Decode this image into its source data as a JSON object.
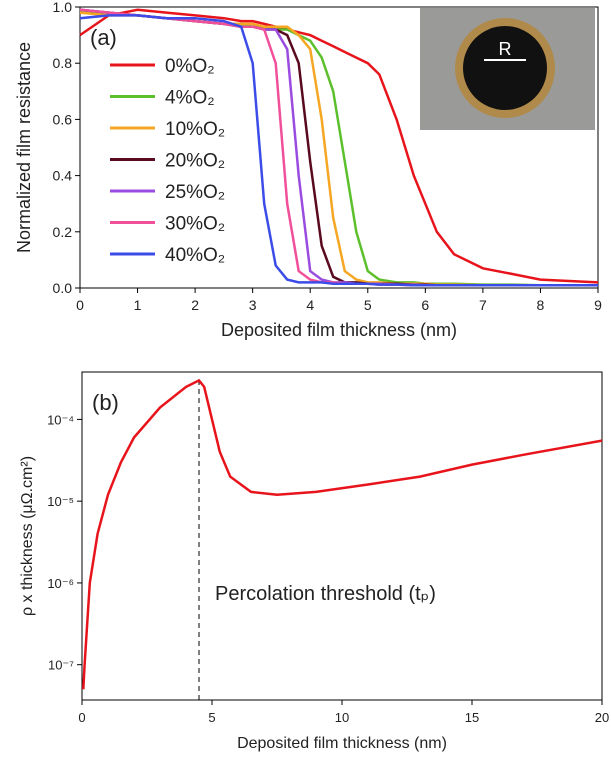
{
  "chart_data": [
    {
      "type": "line",
      "panel_label": "(a)",
      "inset_label": "R",
      "xlabel": "Deposited film thickness (nm)",
      "ylabel": "Normalized film resistance",
      "xlim": [
        0,
        9
      ],
      "ylim": [
        0,
        1
      ],
      "xticks": [
        0,
        1,
        2,
        3,
        4,
        5,
        6,
        7,
        8,
        9
      ],
      "yticks": [
        {
          "value": 0,
          "label": "0.0"
        },
        0.2,
        0.4,
        0.6,
        0.8,
        {
          "value": 1,
          "label": "1.0"
        }
      ],
      "legend_position": "upper left",
      "x": [
        0,
        0.5,
        1,
        1.5,
        2,
        2.5,
        2.8,
        3,
        3.2,
        3.4,
        3.6,
        3.8,
        4,
        4.2,
        4.4,
        4.6,
        4.8,
        5,
        5.2,
        5.5,
        5.8,
        6,
        6.2,
        6.5,
        7,
        7.5,
        8,
        9
      ],
      "series": [
        {
          "name": "0%O₂",
          "color": "#e8141c",
          "values": [
            0.9,
            0.97,
            0.99,
            0.98,
            0.97,
            0.96,
            0.95,
            0.95,
            0.94,
            0.93,
            0.92,
            0.91,
            0.9,
            0.88,
            0.86,
            0.84,
            0.82,
            0.8,
            0.76,
            0.6,
            0.4,
            0.3,
            0.2,
            0.12,
            0.07,
            0.05,
            0.03,
            0.02
          ]
        },
        {
          "name": "4%O₂",
          "color": "#5cc02c",
          "values": [
            0.98,
            0.98,
            0.97,
            0.96,
            0.95,
            0.94,
            0.94,
            0.93,
            0.93,
            0.92,
            0.92,
            0.9,
            0.88,
            0.82,
            0.7,
            0.45,
            0.2,
            0.06,
            0.03,
            0.02,
            0.02,
            0.015,
            0.015,
            0.015,
            0.012,
            0.012,
            0.01,
            0.01
          ]
        },
        {
          "name": "10%O₂",
          "color": "#f5a623",
          "values": [
            0.98,
            0.97,
            0.97,
            0.96,
            0.95,
            0.94,
            0.94,
            0.94,
            0.93,
            0.93,
            0.93,
            0.9,
            0.85,
            0.6,
            0.25,
            0.06,
            0.03,
            0.02,
            0.02,
            0.015,
            0.015,
            0.015,
            0.012,
            0.012,
            0.01,
            0.01,
            0.01,
            0.01
          ]
        },
        {
          "name": "20%O₂",
          "color": "#5a0a1e",
          "values": [
            0.99,
            0.98,
            0.97,
            0.96,
            0.95,
            0.94,
            0.93,
            0.93,
            0.92,
            0.92,
            0.9,
            0.8,
            0.45,
            0.15,
            0.04,
            0.02,
            0.02,
            0.015,
            0.015,
            0.015,
            0.012,
            0.012,
            0.01,
            0.01,
            0.01,
            0.01,
            0.01,
            0.01
          ]
        },
        {
          "name": "25%O₂",
          "color": "#9b4ce0",
          "values": [
            0.99,
            0.98,
            0.97,
            0.96,
            0.95,
            0.94,
            0.93,
            0.93,
            0.92,
            0.92,
            0.85,
            0.4,
            0.06,
            0.03,
            0.02,
            0.02,
            0.015,
            0.015,
            0.015,
            0.012,
            0.012,
            0.01,
            0.01,
            0.01,
            0.01,
            0.01,
            0.01,
            0.01
          ]
        },
        {
          "name": "30%O₂",
          "color": "#f0509a",
          "values": [
            0.99,
            0.98,
            0.97,
            0.96,
            0.95,
            0.94,
            0.93,
            0.93,
            0.92,
            0.8,
            0.3,
            0.06,
            0.03,
            0.02,
            0.02,
            0.015,
            0.015,
            0.015,
            0.012,
            0.012,
            0.01,
            0.01,
            0.01,
            0.01,
            0.01,
            0.01,
            0.01,
            0.01
          ]
        },
        {
          "name": "40%O₂",
          "color": "#3c4ce8",
          "values": [
            0.96,
            0.97,
            0.97,
            0.96,
            0.96,
            0.95,
            0.93,
            0.8,
            0.3,
            0.08,
            0.03,
            0.02,
            0.02,
            0.02,
            0.015,
            0.015,
            0.015,
            0.015,
            0.012,
            0.012,
            0.01,
            0.01,
            0.01,
            0.01,
            0.01,
            0.01,
            0.01,
            0.01
          ]
        }
      ]
    },
    {
      "type": "line",
      "panel_label": "(b)",
      "annotation": "Percolation threshold (tₚ)",
      "threshold_x": 4.5,
      "xlabel": "Deposited film thickness (nm)",
      "ylabel": "ρ x thickness (μΩ.cm²)",
      "xlim": [
        0,
        20
      ],
      "ylim": [
        3.7e-08,
        0.00038
      ],
      "ylog": true,
      "xticks": [
        0,
        5,
        10,
        15,
        20
      ],
      "yticks": [
        {
          "value": 1e-07,
          "label": "10⁻⁷"
        },
        {
          "value": 1e-06,
          "label": "10⁻⁶"
        },
        {
          "value": 1e-05,
          "label": "10⁻⁵"
        },
        {
          "value": 0.0001,
          "label": "10⁻⁴"
        }
      ],
      "x": [
        0.05,
        0.1,
        0.3,
        0.6,
        1,
        1.5,
        2,
        3,
        4,
        4.5,
        4.7,
        5,
        5.3,
        5.7,
        6.5,
        7.5,
        9,
        11,
        13,
        15,
        17,
        20
      ],
      "series": [
        {
          "name": null,
          "color": "#e8141c",
          "values": [
            5e-08,
            1e-07,
            1e-06,
            4e-06,
            1.2e-05,
            3e-05,
            6e-05,
            0.00014,
            0.00025,
            0.0003,
            0.00025,
            0.0001,
            4e-05,
            2e-05,
            1.3e-05,
            1.2e-05,
            1.3e-05,
            1.6e-05,
            2e-05,
            2.8e-05,
            3.7e-05,
            5.5e-05
          ]
        }
      ]
    }
  ]
}
